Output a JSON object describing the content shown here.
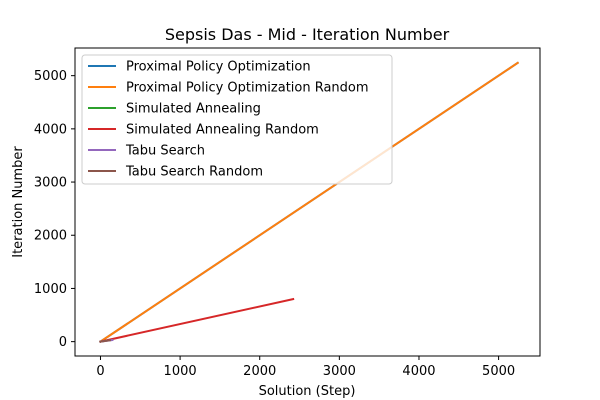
{
  "chart_data": {
    "type": "line",
    "title": "Sepsis Das - Mid - Iteration Number",
    "xlabel": "Solution (Step)",
    "ylabel": "Iteration Number",
    "xlim": [
      -320,
      5520
    ],
    "ylim": [
      -270,
      5520
    ],
    "xticks": [
      0,
      1000,
      2000,
      3000,
      4000,
      5000
    ],
    "yticks": [
      0,
      1000,
      2000,
      3000,
      4000,
      5000
    ],
    "grid": false,
    "legend": "top-left",
    "series": [
      {
        "name": "Proximal Policy Optimization",
        "color": "#1f77b4",
        "x": [
          0,
          5240
        ],
        "y": [
          0,
          5240
        ]
      },
      {
        "name": "Proximal Policy Optimization Random",
        "color": "#ff7f0e",
        "x": [
          0,
          5240
        ],
        "y": [
          0,
          5240
        ]
      },
      {
        "name": "Simulated Annealing",
        "color": "#2ca02c",
        "x": [
          0,
          80
        ],
        "y": [
          0,
          20
        ]
      },
      {
        "name": "Simulated Annealing Random",
        "color": "#d62728",
        "x": [
          0,
          2420
        ],
        "y": [
          0,
          800
        ]
      },
      {
        "name": "Tabu Search",
        "color": "#9467bd",
        "x": [
          0,
          150
        ],
        "y": [
          0,
          30
        ]
      },
      {
        "name": "Tabu Search Random",
        "color": "#8c564b",
        "x": [
          0,
          120
        ],
        "y": [
          0,
          25
        ]
      }
    ]
  }
}
